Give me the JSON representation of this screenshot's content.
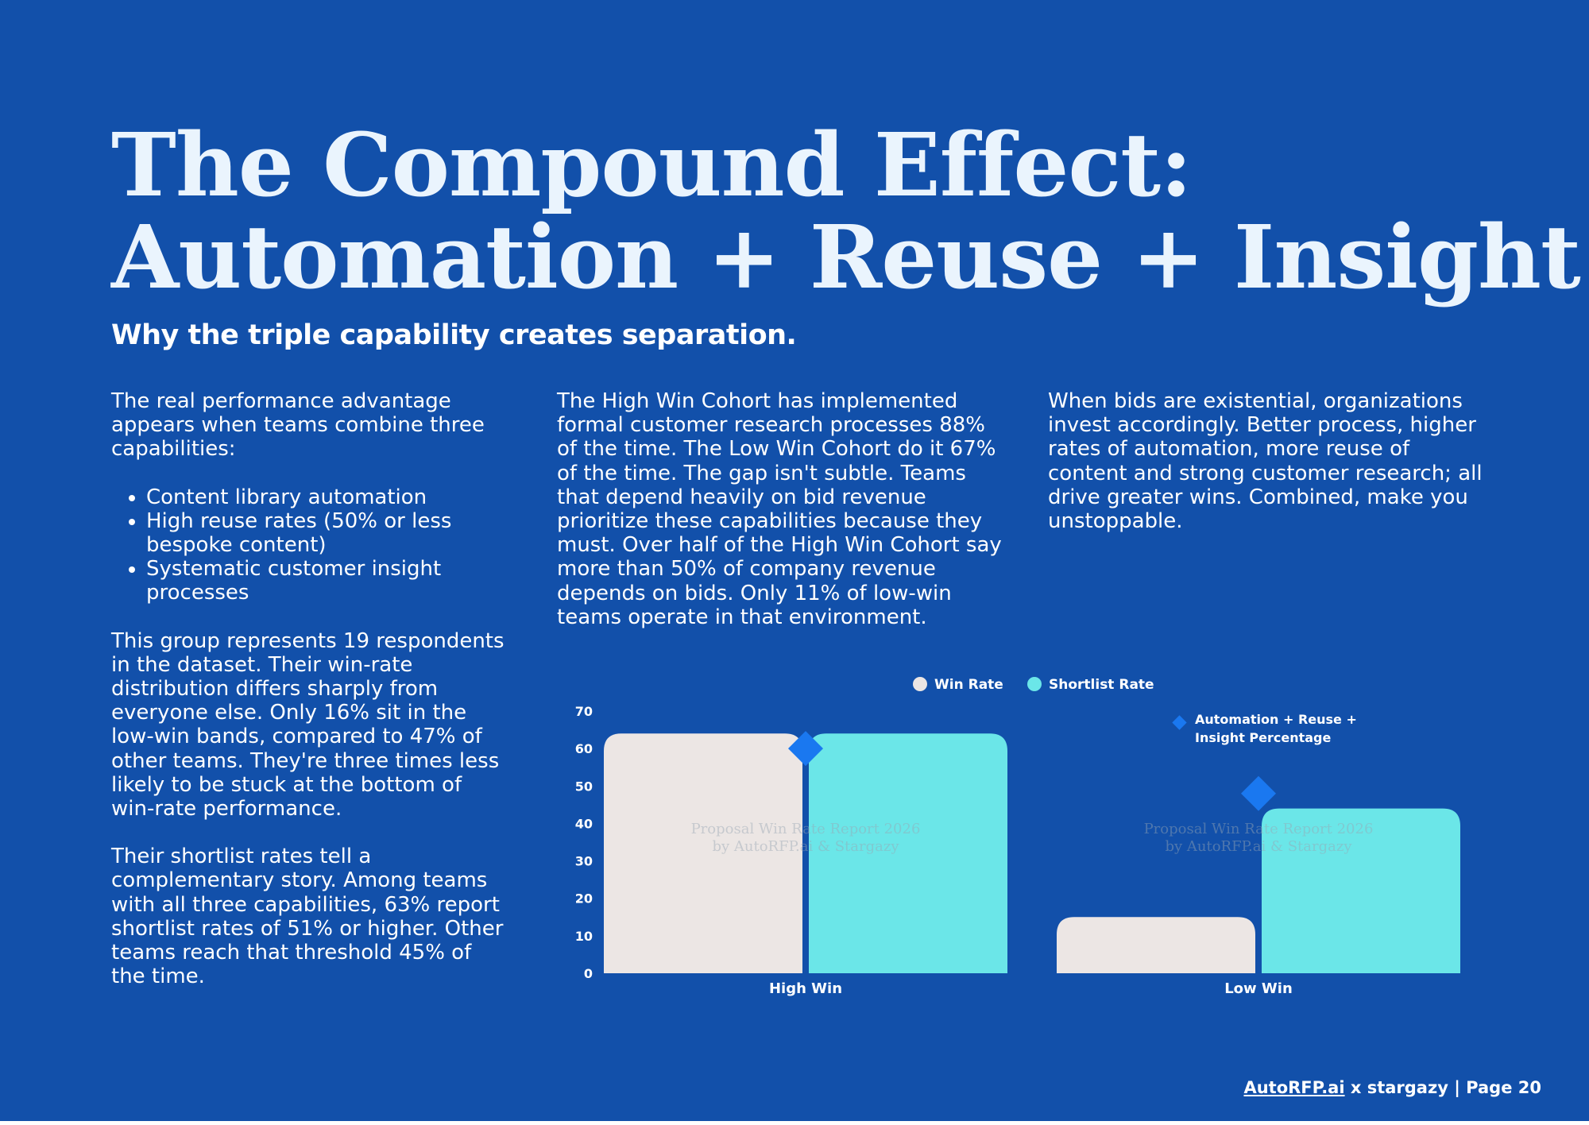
{
  "title": {
    "line1": "The Compound Effect:",
    "line2": "Automation + Reuse + Insight"
  },
  "subtitle": "Why the triple capability creates separation.",
  "column1": {
    "intro": "The real performance advantage appears when teams combine three capabilities:",
    "bullets": [
      "Content library automation",
      "High reuse rates (50% or less bespoke content)",
      "Systematic customer insight processes"
    ],
    "para2": "This group represents 19 respondents in the dataset. Their win-rate distribution differs sharply from everyone else. Only 16% sit in the low-win bands, compared to 47% of other teams. They're three times less likely to be stuck at the bottom of win-rate performance.",
    "para3": "Their shortlist rates tell a complementary story. Among teams with all three capabilities, 63% report shortlist rates of 51% or higher. Other teams reach that threshold 45% of the time."
  },
  "column2": {
    "para": "The High Win Cohort has implemented formal customer research processes 88% of the time. The Low Win Cohort do it 67% of the time. The gap isn't subtle. Teams that depend heavily on bid revenue prioritize these capabilities because they must. Over half of the High Win Cohort say more than 50% of company revenue depends on bids. Only 11% of low-win teams operate in that environment."
  },
  "column3": {
    "para": "When bids are existential, organizations invest accordingly. Better process, higher rates of automation, more reuse of content and strong customer research; all drive greater wins. Combined, make you unstoppable."
  },
  "chart_data": {
    "type": "bar",
    "categories": [
      "High Win",
      "Low Win"
    ],
    "series": [
      {
        "name": "Win Rate",
        "values": [
          64,
          15
        ],
        "color": "#ece6e4"
      },
      {
        "name": "Shortlist Rate",
        "values": [
          64,
          44
        ],
        "color": "#6be6e8"
      }
    ],
    "markers": {
      "name": "Automation + Reuse + Insight Percentage",
      "values": [
        60,
        48
      ],
      "color": "#1a78f0",
      "shape": "diamond"
    },
    "ylim": [
      0,
      70
    ],
    "yticks": [
      "0",
      "10",
      "20",
      "30",
      "40",
      "50",
      "60",
      "70"
    ],
    "grid": false,
    "legend_placement": "top",
    "watermark": [
      "Proposal Win Rate Report 2026",
      "by AutoRFP.ai & Stargazy"
    ]
  },
  "footer": {
    "link": "AutoRFP.ai",
    "rest": " x stargazy | Page 20"
  }
}
